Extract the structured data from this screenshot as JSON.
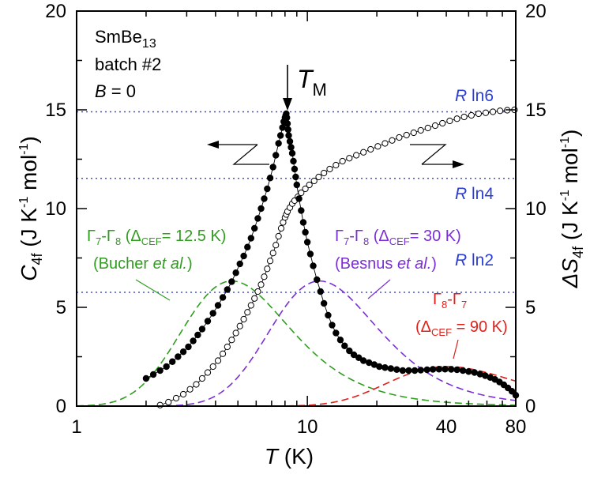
{
  "chart_data": {
    "type": "scatter",
    "x_scale": "log",
    "xlim": [
      1,
      80
    ],
    "ylim_left": [
      0,
      20
    ],
    "ylim_right": [
      0,
      20
    ],
    "x_ticks": [
      1,
      10,
      40,
      80
    ],
    "x_tick_labels": [
      "1",
      "10",
      "40",
      "80"
    ],
    "y_ticks": [
      0,
      5,
      10,
      15,
      20
    ],
    "y_tick_labels": [
      "0",
      "5",
      "10",
      "15",
      "20"
    ],
    "xlabel": {
      "var": "T",
      "unit": " (K)"
    },
    "ylabel_left": {
      "var": "C",
      "sub": "4f",
      "unit_pre": " (J K",
      "sup1": "-1",
      "mid": " mol",
      "sup2": "-1",
      "end": ")"
    },
    "ylabel_right": {
      "var": "ΔS",
      "sub": "4f",
      "unit_pre": " (J K",
      "sup1": "-1",
      "mid": " mol",
      "sup2": "-1",
      "end": ")"
    },
    "sample": {
      "name": "SmBe",
      "sub": "13",
      "batch": "batch #2",
      "field_var": "B",
      "field_val": " = 0"
    },
    "transition": {
      "label": "T",
      "sub": "M",
      "T": 8.1
    },
    "reference_lines": [
      {
        "label_R": "R",
        "label_rest": " ln6",
        "value": 14.9
      },
      {
        "label_R": "R",
        "label_rest": " ln4",
        "value": 11.53
      },
      {
        "label_R": "R",
        "label_rest": " ln2",
        "value": 5.76
      }
    ],
    "series": [
      {
        "name": "C4f",
        "style": "filled-circles",
        "color": "#000000",
        "x": [
          2.0,
          2.15,
          2.3,
          2.45,
          2.6,
          2.75,
          2.9,
          3.05,
          3.2,
          3.35,
          3.5,
          3.7,
          3.9,
          4.1,
          4.3,
          4.5,
          4.7,
          4.9,
          5.1,
          5.3,
          5.5,
          5.7,
          5.9,
          6.1,
          6.3,
          6.5,
          6.7,
          6.9,
          7.1,
          7.3,
          7.5,
          7.65,
          7.8,
          7.9,
          8.0,
          8.05,
          8.1,
          8.15,
          8.2,
          8.25,
          8.3,
          8.4,
          8.5,
          8.6,
          8.7,
          8.8,
          8.9,
          9.0,
          9.2,
          9.4,
          9.6,
          9.8,
          10.0,
          10.3,
          10.6,
          11.0,
          11.4,
          11.8,
          12.3,
          12.8,
          13.3,
          13.9,
          14.5,
          15.2,
          15.9,
          16.7,
          17.5,
          18.5,
          19.5,
          20.5,
          21.7,
          23.0,
          24.4,
          25.9,
          27.5,
          29.2,
          31.0,
          33.0,
          35.0,
          37.2,
          39.5,
          42.0,
          44.5,
          47.2,
          50.0,
          53.0,
          56.0,
          59.0,
          62.0,
          65.0,
          68.0,
          71.0,
          74.0,
          77.0,
          80.0
        ],
        "y": [
          1.4,
          1.6,
          1.8,
          2.0,
          2.25,
          2.5,
          2.75,
          3.0,
          3.3,
          3.6,
          3.9,
          4.3,
          4.7,
          5.1,
          5.5,
          5.9,
          6.3,
          6.75,
          7.2,
          7.6,
          8.05,
          8.5,
          9.0,
          9.5,
          10.0,
          10.5,
          11.0,
          11.55,
          12.1,
          12.7,
          13.3,
          13.7,
          14.1,
          14.4,
          14.6,
          14.7,
          14.8,
          14.6,
          14.3,
          14.0,
          13.7,
          13.4,
          13.1,
          12.8,
          12.4,
          12.0,
          11.6,
          11.2,
          10.5,
          9.9,
          9.3,
          8.8,
          8.3,
          7.7,
          7.1,
          6.4,
          5.8,
          5.2,
          4.6,
          4.1,
          3.7,
          3.35,
          3.05,
          2.8,
          2.6,
          2.45,
          2.3,
          2.2,
          2.1,
          2.0,
          1.95,
          1.9,
          1.85,
          1.8,
          1.8,
          1.8,
          1.82,
          1.84,
          1.86,
          1.87,
          1.87,
          1.86,
          1.84,
          1.8,
          1.75,
          1.7,
          1.62,
          1.54,
          1.45,
          1.35,
          1.22,
          1.08,
          0.92,
          0.75,
          0.55
        ]
      },
      {
        "name": "ΔS4f",
        "style": "open-circles",
        "color": "#000000",
        "x": [
          2.3,
          2.5,
          2.7,
          2.9,
          3.1,
          3.3,
          3.5,
          3.7,
          3.9,
          4.1,
          4.3,
          4.5,
          4.7,
          4.9,
          5.1,
          5.3,
          5.5,
          5.7,
          5.9,
          6.1,
          6.3,
          6.5,
          6.7,
          6.9,
          7.1,
          7.3,
          7.5,
          7.7,
          7.85,
          8.0,
          8.1,
          8.2,
          8.4,
          8.6,
          8.8,
          9.1,
          9.4,
          9.8,
          10.2,
          10.7,
          11.2,
          11.8,
          12.5,
          13.3,
          14.2,
          15.2,
          16.3,
          17.5,
          18.8,
          20.2,
          21.7,
          23.3,
          25.0,
          26.9,
          28.9,
          31.0,
          33.3,
          35.8,
          38.5,
          41.4,
          44.5,
          47.8,
          51.4,
          55.2,
          59.3,
          63.7,
          68.4,
          73.5,
          79.0
        ],
        "y": [
          0.05,
          0.2,
          0.4,
          0.6,
          0.85,
          1.1,
          1.4,
          1.7,
          2.0,
          2.3,
          2.65,
          3.0,
          3.35,
          3.7,
          4.05,
          4.4,
          4.75,
          5.1,
          5.45,
          5.8,
          6.15,
          6.55,
          6.95,
          7.35,
          7.75,
          8.15,
          8.6,
          9.0,
          9.3,
          9.55,
          9.7,
          9.85,
          10.05,
          10.25,
          10.4,
          10.6,
          10.8,
          11.0,
          11.2,
          11.4,
          11.6,
          11.8,
          12.0,
          12.2,
          12.4,
          12.55,
          12.7,
          12.85,
          13.0,
          13.15,
          13.3,
          13.45,
          13.6,
          13.72,
          13.84,
          13.96,
          14.08,
          14.2,
          14.32,
          14.44,
          14.55,
          14.64,
          14.72,
          14.8,
          14.85,
          14.9,
          14.95,
          14.98,
          15.0
        ]
      }
    ],
    "model_curves": [
      {
        "label_G1": "Γ",
        "sub1": "7",
        "dash": "-",
        "label_G2": "Γ",
        "sub2": "8",
        "open": " (Δ",
        "sub3": "CEF",
        "rest": "= 12.5 K)",
        "ref_pre": "(Bucher ",
        "ref_it": "et al.",
        "ref_post": ")",
        "delta_K": 12.5,
        "g_ground": 2,
        "g_excited": 4,
        "color": "#2f9e1e"
      },
      {
        "label_G1": "Γ",
        "sub1": "7",
        "dash": "-",
        "label_G2": "Γ",
        "sub2": "8",
        "open": " (Δ",
        "sub3": "CEF",
        "rest": "= 30 K)",
        "ref_pre": "(Besnus ",
        "ref_it": "et al.",
        "ref_post": ")",
        "delta_K": 30,
        "g_ground": 2,
        "g_excited": 4,
        "color": "#7b2fd6"
      },
      {
        "label_G1": "Γ",
        "sub1": "8",
        "dash": "-",
        "label_G2": "Γ",
        "sub2": "7",
        "open": "(Δ",
        "sub3": "CEF",
        "rest": " = 90 K)",
        "ref_pre": "",
        "ref_it": "",
        "ref_post": "",
        "delta_K": 90,
        "g_ground": 4,
        "g_excited": 2,
        "color": "#e0201a"
      }
    ]
  }
}
